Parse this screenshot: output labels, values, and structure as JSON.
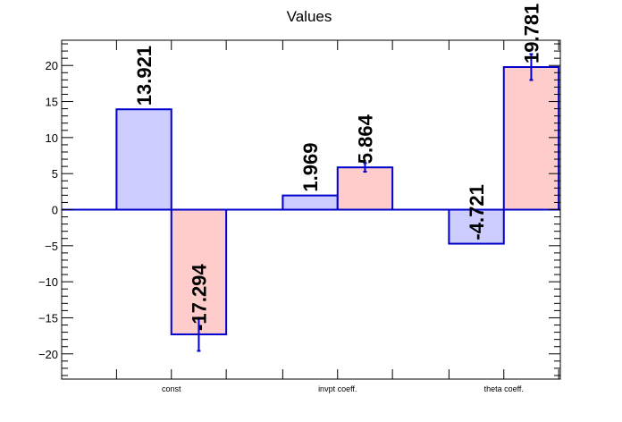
{
  "chart_data": {
    "type": "bar",
    "title": "Values",
    "xlabel": "",
    "ylabel": "",
    "ylim": [
      -23.5,
      23.5
    ],
    "yticks": [
      -20,
      -15,
      -10,
      -5,
      0,
      5,
      10,
      15,
      20
    ],
    "categories": [
      "const",
      "invpt coeff.",
      "theta coeff."
    ],
    "series": [
      {
        "color": "#ccccff",
        "values": [
          13.921,
          1.969,
          -4.721
        ],
        "errors": [
          0,
          0,
          0
        ]
      },
      {
        "color": "#ffcccc",
        "values": [
          -17.294,
          5.864,
          19.781
        ],
        "errors": [
          2.3,
          0.6,
          1.8
        ]
      }
    ],
    "data_labels": [
      [
        "13.921",
        "1.969",
        "-4.721"
      ],
      [
        "-17.294",
        "5.864",
        "19.781"
      ]
    ],
    "edge_color": "#0000cc",
    "grid": false,
    "legend": "none"
  }
}
